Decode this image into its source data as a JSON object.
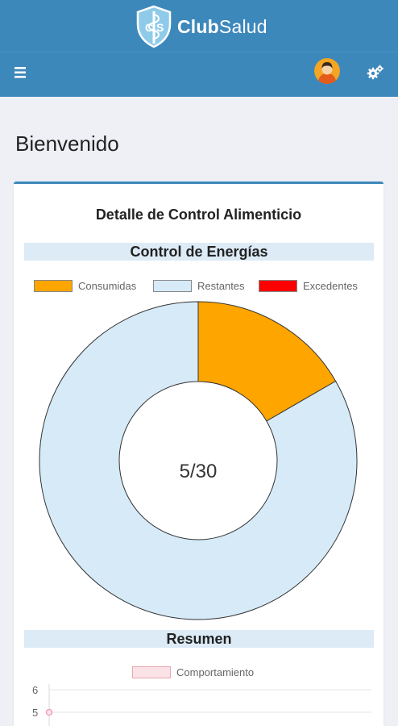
{
  "app": {
    "logo_text_bold": "Club",
    "logo_text_regular": "Salud",
    "logo_monogram": "CS",
    "brand_color": "#3d88bb",
    "menu_icon": "hamburger-icon",
    "avatar_icon": "user-avatar-icon",
    "settings_icon": "gears-icon"
  },
  "page": {
    "welcome": "Bienvenido"
  },
  "card": {
    "title": "Detalle de Control Alimenticio",
    "energy_section": "Control de Energías",
    "resumen_section": "Resumen",
    "center_label": "5/30"
  },
  "chart_data": [
    {
      "type": "pie",
      "title": "Control de Energías",
      "legend_position": "top",
      "categories": [
        "Consumidas",
        "Restantes",
        "Excedentes"
      ],
      "values": [
        5,
        25,
        0
      ],
      "colors": [
        "#ffa500",
        "#d6eaf8",
        "#ff0000"
      ]
    },
    {
      "type": "line",
      "title": "Resumen",
      "legend_position": "top",
      "series": [
        {
          "name": "Comportamiento",
          "values": [
            5
          ],
          "color": "#f2a0b0"
        }
      ],
      "yticks": [
        6,
        5
      ]
    }
  ]
}
